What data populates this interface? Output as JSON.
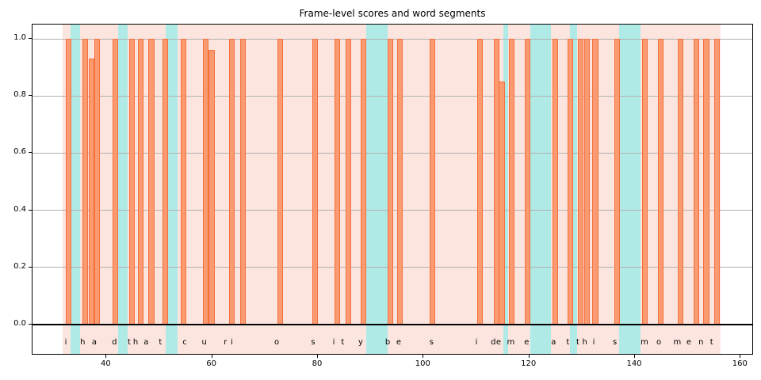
{
  "chart_data": {
    "type": "bar",
    "title": "Frame-level scores and word segments",
    "xlabel": "",
    "ylabel": "",
    "xlim": [
      26.0,
      162.5
    ],
    "ylim": [
      -0.108,
      1.05
    ],
    "x_ticks": [
      40,
      60,
      80,
      100,
      120,
      140,
      160
    ],
    "y_ticks": [
      "0.0",
      "0.2",
      "0.4",
      "0.6",
      "0.8",
      "1.0"
    ],
    "grid": "horizontal-y",
    "legend": "none",
    "bar_width_units": 0.8,
    "bars": [
      {
        "x": 32.8,
        "score": 1.0
      },
      {
        "x": 36.0,
        "score": 1.0
      },
      {
        "x": 37.2,
        "score": 0.93
      },
      {
        "x": 38.2,
        "score": 1.0
      },
      {
        "x": 41.7,
        "score": 1.0
      },
      {
        "x": 44.8,
        "score": 1.0
      },
      {
        "x": 46.5,
        "score": 1.0
      },
      {
        "x": 48.5,
        "score": 1.0
      },
      {
        "x": 51.1,
        "score": 1.0
      },
      {
        "x": 54.6,
        "score": 1.0
      },
      {
        "x": 58.8,
        "score": 1.0
      },
      {
        "x": 59.9,
        "score": 0.96
      },
      {
        "x": 63.7,
        "score": 1.0
      },
      {
        "x": 65.8,
        "score": 1.0
      },
      {
        "x": 72.9,
        "score": 1.0
      },
      {
        "x": 79.5,
        "score": 1.0
      },
      {
        "x": 83.7,
        "score": 1.0
      },
      {
        "x": 85.8,
        "score": 1.0
      },
      {
        "x": 88.6,
        "score": 1.0
      },
      {
        "x": 93.7,
        "score": 1.0
      },
      {
        "x": 95.5,
        "score": 1.0
      },
      {
        "x": 101.7,
        "score": 1.0
      },
      {
        "x": 110.7,
        "score": 1.0
      },
      {
        "x": 113.8,
        "score": 1.0
      },
      {
        "x": 114.8,
        "score": 0.85
      },
      {
        "x": 116.7,
        "score": 1.0
      },
      {
        "x": 119.7,
        "score": 1.0
      },
      {
        "x": 124.9,
        "score": 1.0
      },
      {
        "x": 127.8,
        "score": 1.0
      },
      {
        "x": 129.7,
        "score": 1.0
      },
      {
        "x": 130.9,
        "score": 1.0
      },
      {
        "x": 132.5,
        "score": 1.0
      },
      {
        "x": 136.6,
        "score": 1.0
      },
      {
        "x": 141.9,
        "score": 1.0
      },
      {
        "x": 144.9,
        "score": 1.0
      },
      {
        "x": 148.6,
        "score": 1.0
      },
      {
        "x": 151.6,
        "score": 1.0
      },
      {
        "x": 153.5,
        "score": 1.0
      },
      {
        "x": 155.5,
        "score": 1.0
      }
    ],
    "transcript": "i had that curiosity beside me at this moment",
    "words": [
      {
        "text": "i",
        "start": 31.7,
        "end": 33.2,
        "chars": [
          [
            "i",
            32.3
          ]
        ]
      },
      {
        "text": "had",
        "start": 35.0,
        "end": 42.2,
        "chars": [
          [
            "h",
            35.5
          ],
          [
            "a",
            37.7
          ],
          [
            "d",
            41.5
          ]
        ]
      },
      {
        "text": "that",
        "start": 44.0,
        "end": 51.2,
        "chars": [
          [
            "t",
            44.3
          ],
          [
            "h",
            45.5
          ],
          [
            "a",
            47.5
          ],
          [
            "t",
            50.2
          ]
        ]
      },
      {
        "text": "curiosity",
        "start": 53.4,
        "end": 89.2,
        "chars": [
          [
            "c",
            54.8
          ],
          [
            "u",
            58.5
          ],
          [
            "r",
            62.5
          ],
          [
            "i",
            63.7
          ],
          [
            "o",
            72.2
          ],
          [
            "s",
            79.1
          ],
          [
            "i",
            83.0
          ],
          [
            "t",
            84.7
          ],
          [
            "y",
            88.1
          ]
        ]
      },
      {
        "text": "beside",
        "start": 93.2,
        "end": 115.1,
        "chars": [
          [
            "b",
            93.2
          ],
          [
            "e",
            95.3
          ],
          [
            "s",
            101.5
          ],
          [
            "i",
            110.0
          ],
          [
            "d",
            113.2
          ],
          [
            "e",
            114.2
          ]
        ]
      },
      {
        "text": "me",
        "start": 116.0,
        "end": 120.2,
        "chars": [
          [
            "m",
            116.5
          ],
          [
            "e",
            119.5
          ]
        ]
      },
      {
        "text": "at",
        "start": 124.1,
        "end": 127.7,
        "chars": [
          [
            "a",
            124.6
          ],
          [
            "t",
            127.3
          ]
        ]
      },
      {
        "text": "this",
        "start": 129.0,
        "end": 137.0,
        "chars": [
          [
            "t",
            129.2
          ],
          [
            "h",
            130.5
          ],
          [
            "i",
            132.2
          ],
          [
            "s",
            136.2
          ]
        ]
      },
      {
        "text": "moment",
        "start": 141.0,
        "end": 156.2,
        "chars": [
          [
            "m",
            141.8
          ],
          [
            "o",
            144.5
          ],
          [
            "m",
            148.0
          ],
          [
            "e",
            150.2
          ],
          [
            "n",
            152.5
          ],
          [
            "t",
            154.5
          ]
        ]
      }
    ],
    "gaps": [
      [
        33.2,
        35.0
      ],
      [
        42.2,
        44.0
      ],
      [
        51.2,
        53.4
      ],
      [
        89.2,
        93.2
      ],
      [
        115.1,
        116.0
      ],
      [
        120.2,
        124.1
      ],
      [
        127.7,
        129.0
      ],
      [
        137.0,
        141.0
      ]
    ],
    "colors": {
      "bar_fill": "#fa9a70",
      "bar_edge": "#f4703c",
      "word_span": "#fde5df",
      "gap_span": "#b0eae6",
      "grid": "#b0b0b0",
      "axis": "#000000",
      "zero_line": "#000000",
      "text": "#000000"
    }
  }
}
